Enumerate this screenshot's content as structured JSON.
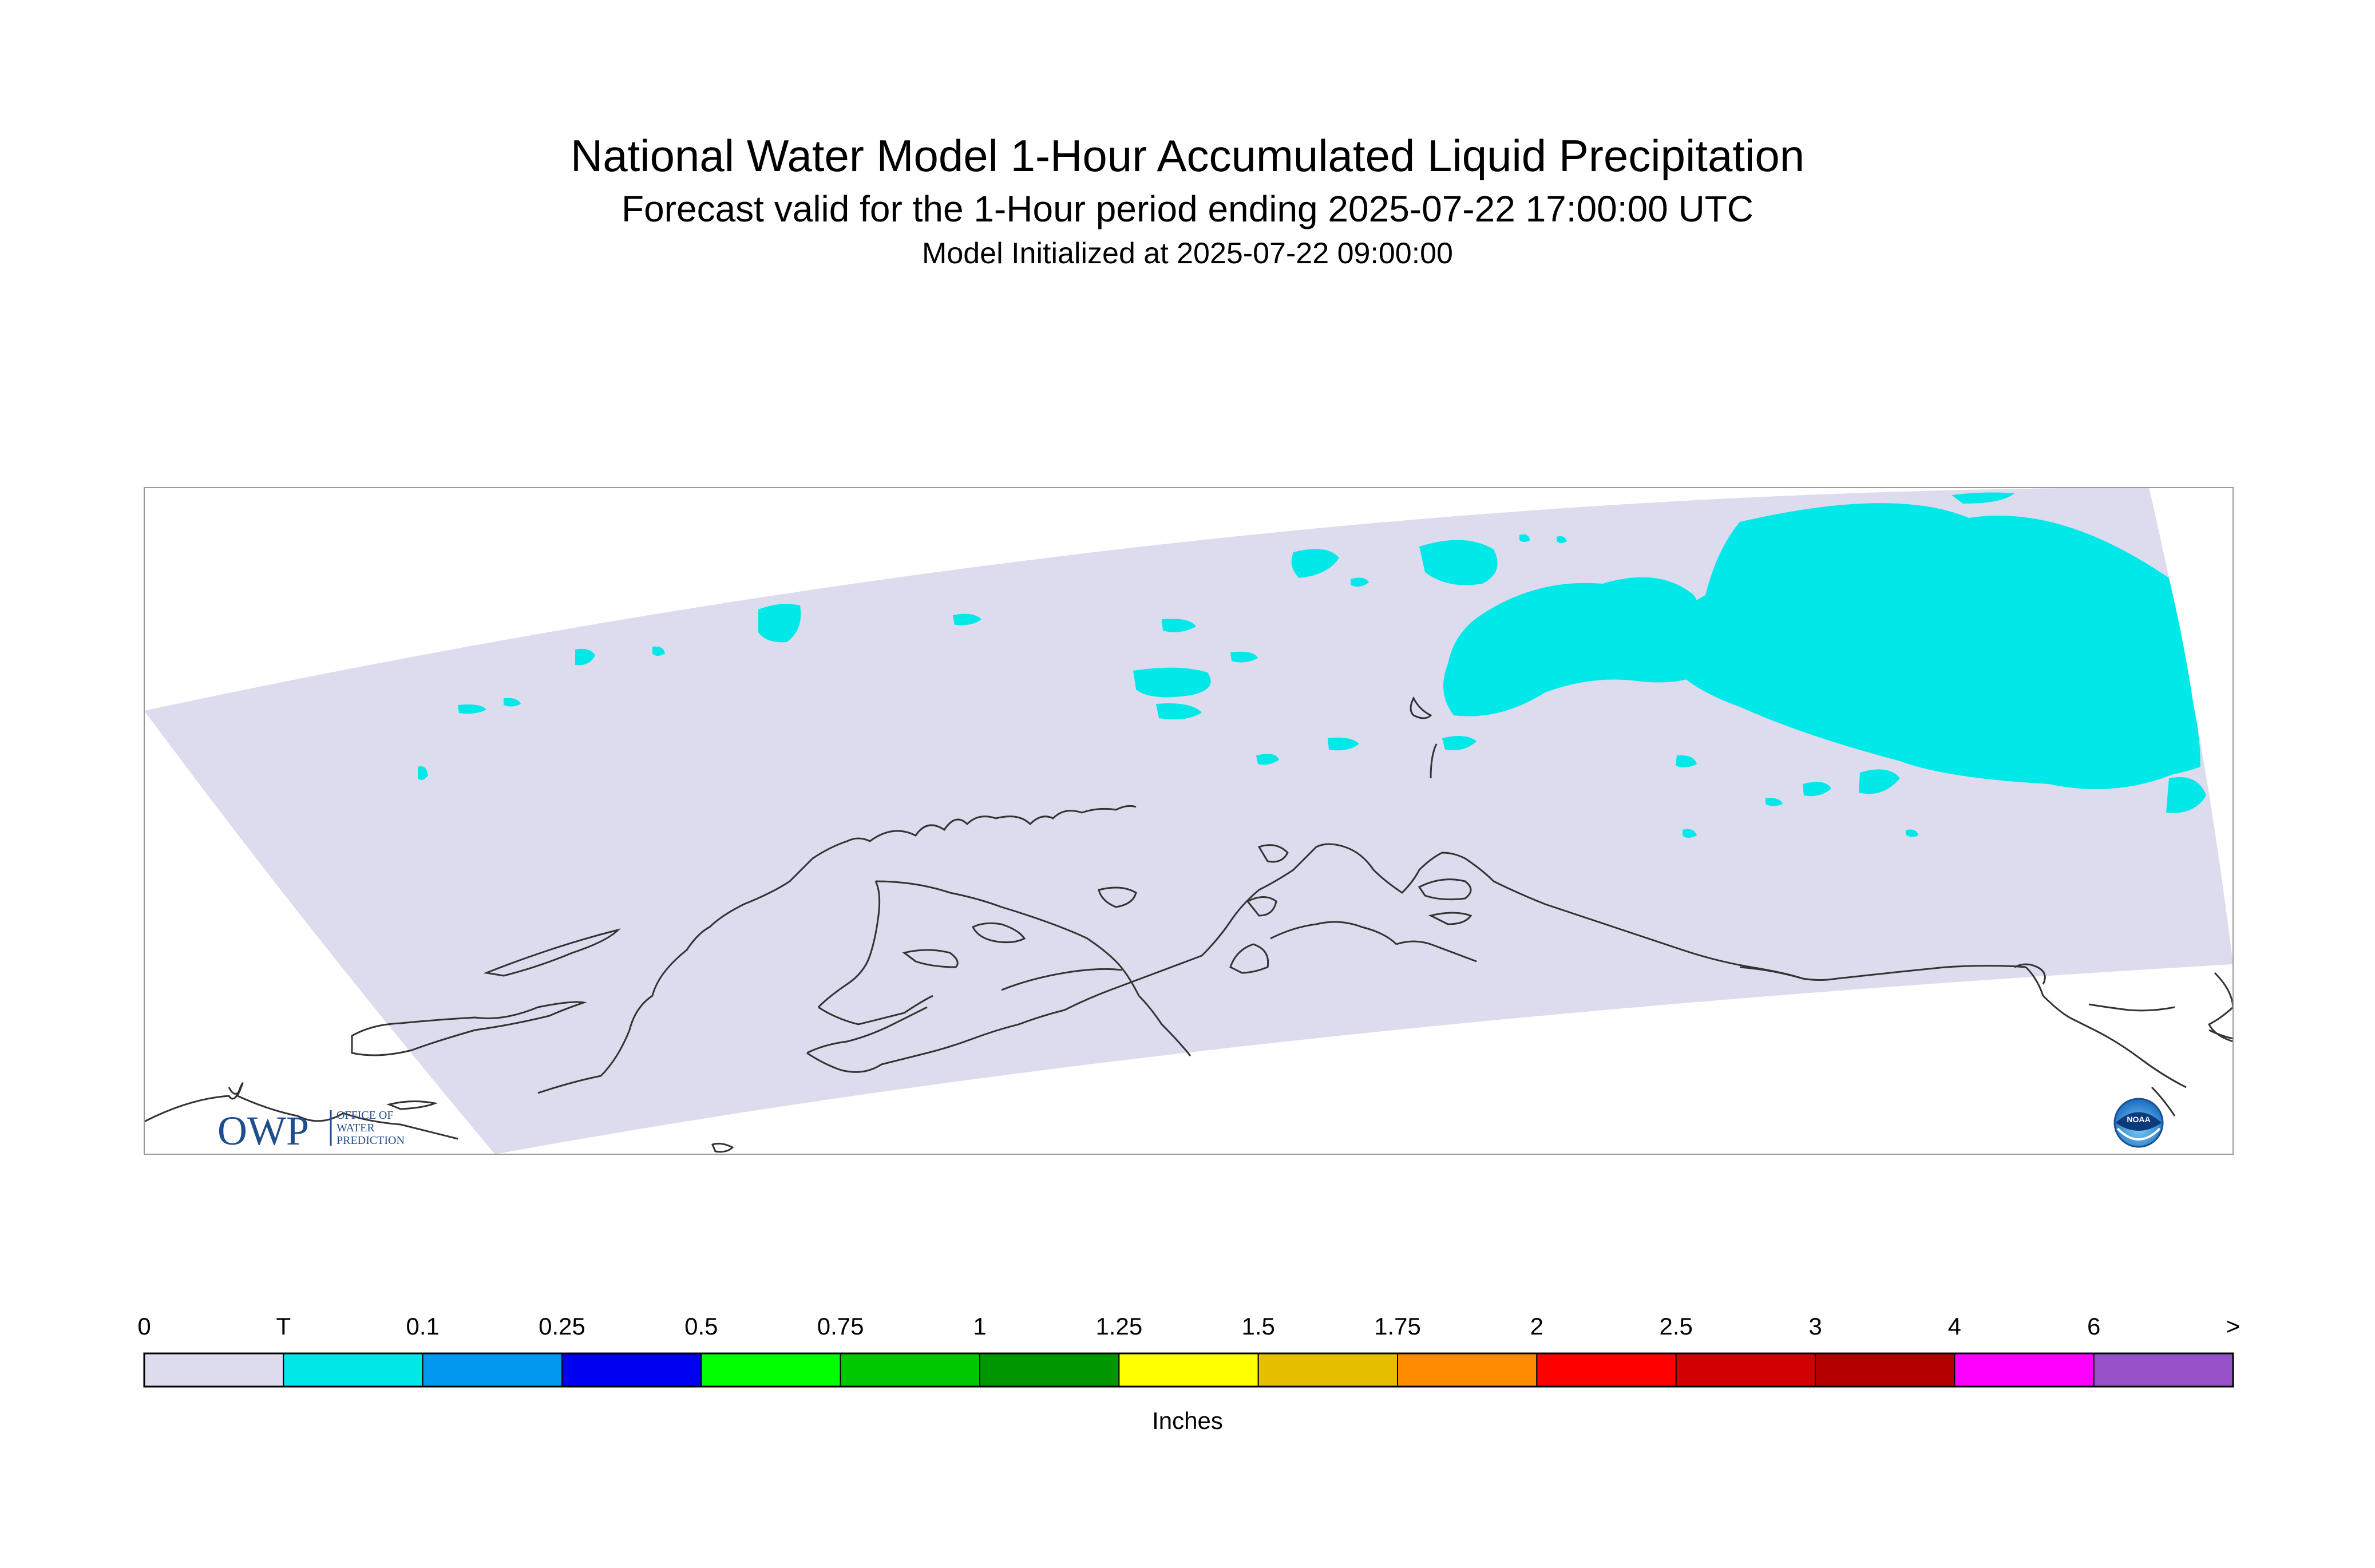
{
  "header": {
    "title": "National Water Model 1-Hour Accumulated Liquid Precipitation",
    "subtitle": "Forecast valid for the 1-Hour period ending 2025-07-22 17:00:00 UTC",
    "initialized": "Model Initialized at 2025-07-22 09:00:00"
  },
  "map": {
    "domain_fill": "#dcdcee",
    "precip_fill": "#00e8e8",
    "coast_color": "#333333",
    "frame_color": "#999999",
    "owp_logo": {
      "letters": "OWP",
      "text_lines": [
        "OFFICE OF",
        "WATER",
        "PREDICTION"
      ],
      "color": "#1f4e8c"
    },
    "noaa_logo": {
      "text": "NOAA",
      "icon": "noaa-seal-icon"
    }
  },
  "legend": {
    "units": "Inches",
    "labels": [
      "0",
      "T",
      "0.1",
      "0.25",
      "0.5",
      "0.75",
      "1",
      "1.25",
      "1.5",
      "1.75",
      "2",
      "2.5",
      "3",
      "4",
      "6",
      ">"
    ],
    "colors": [
      "#dcdcee",
      "#00e8e8",
      "#0099f0",
      "#0000f0",
      "#00ff00",
      "#00c800",
      "#009600",
      "#ffff00",
      "#e6be00",
      "#ff8c00",
      "#ff0000",
      "#d20000",
      "#b40000",
      "#ff00ff",
      "#9650c8"
    ]
  }
}
